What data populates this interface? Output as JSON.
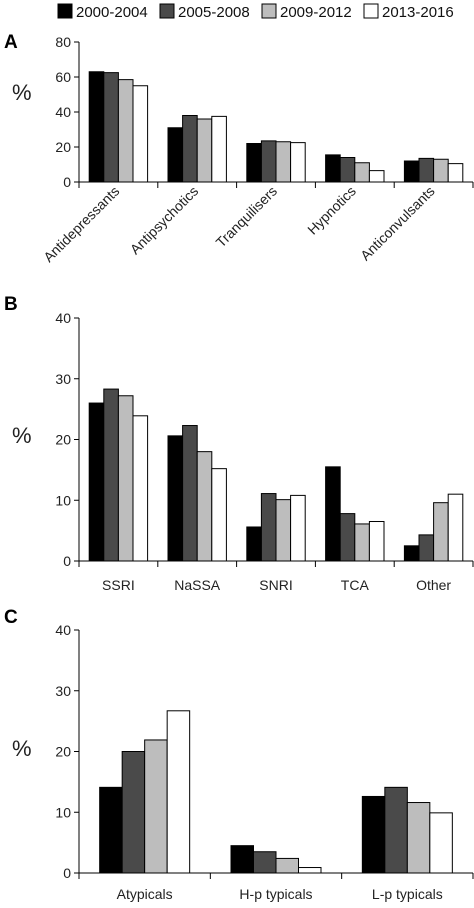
{
  "legend": {
    "entries": [
      "2000-2004",
      "2005-2008",
      "2009-2012",
      "2013-2016"
    ],
    "colors": [
      "#000000",
      "#4a4a4a",
      "#bdbdbd",
      "#ffffff"
    ],
    "placement": "top"
  },
  "chart_data": [
    {
      "panel": "A",
      "type": "bar",
      "ylabel": "%",
      "ylim": [
        0,
        80
      ],
      "yticks": [
        0,
        20,
        40,
        60,
        80
      ],
      "categories": [
        "Antidepressants",
        "Antipsychotics",
        "Tranquilisers",
        "Hypnotics",
        "Anticonvulsants"
      ],
      "label_rotation": -45,
      "series": [
        {
          "name": "2000-2004",
          "values": [
            63,
            31,
            22,
            15.5,
            12
          ]
        },
        {
          "name": "2005-2008",
          "values": [
            62.5,
            38,
            23.5,
            14,
            13.5
          ]
        },
        {
          "name": "2009-2012",
          "values": [
            58.5,
            36,
            23,
            11,
            13
          ]
        },
        {
          "name": "2013-2016",
          "values": [
            55,
            37.5,
            22.5,
            6.5,
            10.5
          ]
        }
      ]
    },
    {
      "panel": "B",
      "type": "bar",
      "ylabel": "%",
      "ylim": [
        0,
        40
      ],
      "yticks": [
        0,
        10,
        20,
        30,
        40
      ],
      "categories": [
        "SSRI",
        "NaSSA",
        "SNRI",
        "TCA",
        "Other"
      ],
      "label_rotation": 0,
      "series": [
        {
          "name": "2000-2004",
          "values": [
            26,
            20.6,
            5.6,
            15.5,
            2.5
          ]
        },
        {
          "name": "2005-2008",
          "values": [
            28.3,
            22.3,
            11.1,
            7.8,
            4.3
          ]
        },
        {
          "name": "2009-2012",
          "values": [
            27.2,
            18,
            10.1,
            6.1,
            9.6
          ]
        },
        {
          "name": "2013-2016",
          "values": [
            23.9,
            15.2,
            10.8,
            6.5,
            11
          ]
        }
      ]
    },
    {
      "panel": "C",
      "type": "bar",
      "ylabel": "%",
      "ylim": [
        0,
        40
      ],
      "yticks": [
        0,
        10,
        20,
        30,
        40
      ],
      "categories": [
        "Atypicals",
        "H-p typicals",
        "L-p typicals"
      ],
      "label_rotation": 0,
      "series": [
        {
          "name": "2000-2004",
          "values": [
            14.1,
            4.5,
            12.6
          ]
        },
        {
          "name": "2005-2008",
          "values": [
            20,
            3.5,
            14.1
          ]
        },
        {
          "name": "2009-2012",
          "values": [
            21.9,
            2.4,
            11.6
          ]
        },
        {
          "name": "2013-2016",
          "values": [
            26.7,
            0.9,
            9.9
          ]
        }
      ]
    }
  ]
}
